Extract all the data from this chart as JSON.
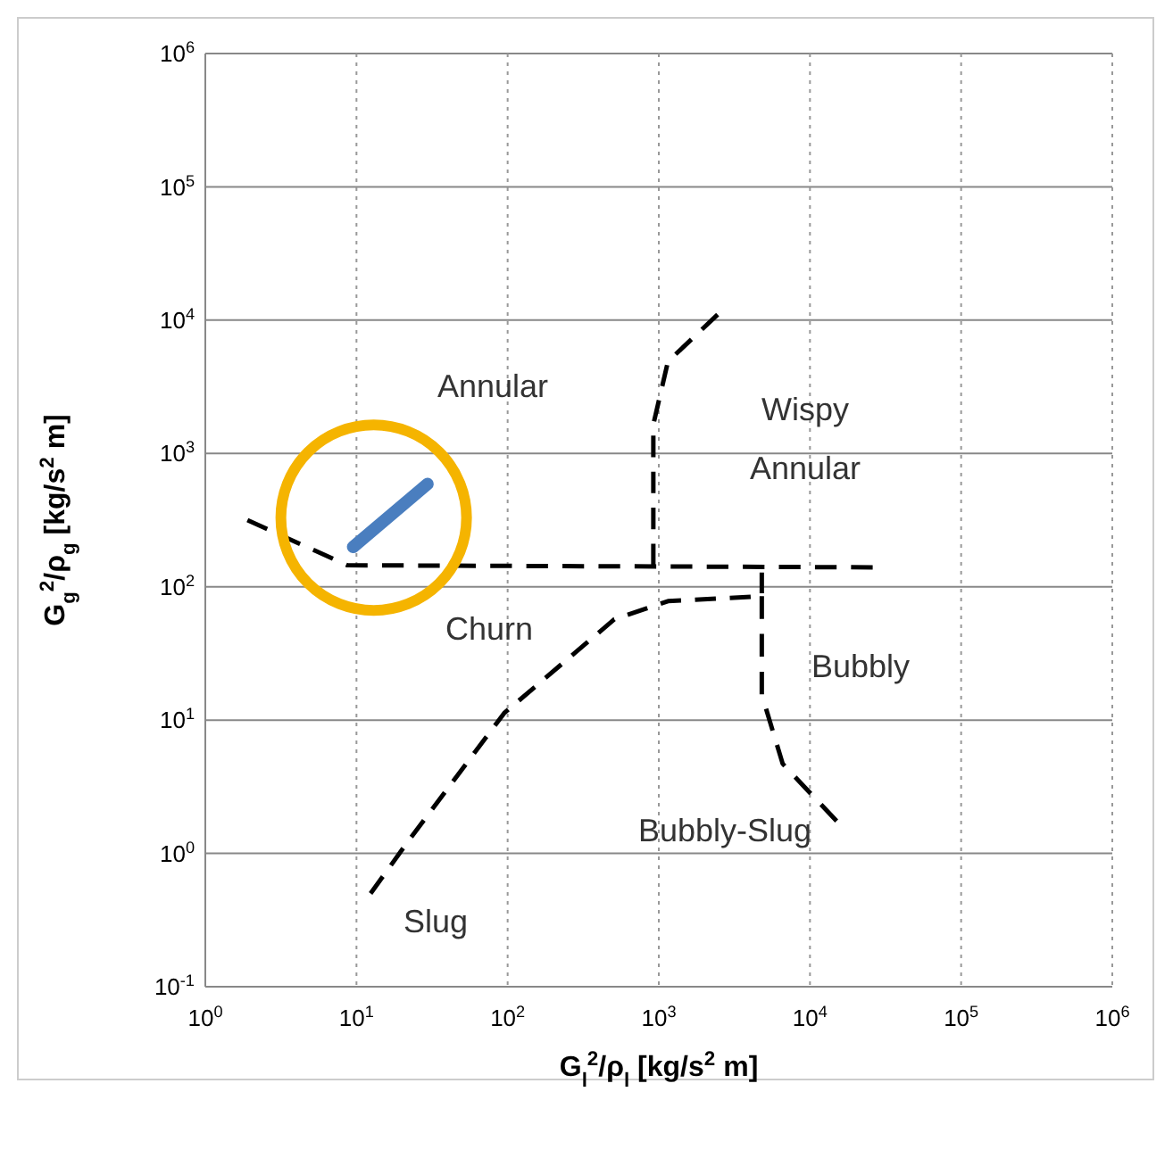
{
  "chart_data": {
    "type": "line",
    "xlabel": "G$_{l}$$^{2}$/ρ$_{l}$ [kg/s$^{2}$ m]",
    "ylabel": "G$_{g}$$^{2}$/ρ$_{g}$ [kg/s$^{2}$ m]",
    "log": "xy",
    "grid": true,
    "xlim": [
      1,
      1000000
    ],
    "ylim": [
      0.1,
      1000000
    ],
    "xticks": [
      {
        "value": 1,
        "label": "10$^{0}$"
      },
      {
        "value": 10,
        "label": "10$^{1}$"
      },
      {
        "value": 100,
        "label": "10$^{2}$"
      },
      {
        "value": 1000,
        "label": "10$^{3}$"
      },
      {
        "value": 10000,
        "label": "10$^{4}$"
      },
      {
        "value": 100000,
        "label": "10$^{5}$"
      },
      {
        "value": 1000000,
        "label": "10$^{6}$"
      }
    ],
    "yticks": [
      {
        "value": 0.1,
        "label": "10$^{-1}$"
      },
      {
        "value": 1,
        "label": "10$^{0}$"
      },
      {
        "value": 10,
        "label": "10$^{1}$"
      },
      {
        "value": 100,
        "label": "10$^{2}$"
      },
      {
        "value": 1000,
        "label": "10$^{3}$"
      },
      {
        "value": 10000,
        "label": "10$^{4}$"
      },
      {
        "value": 100000,
        "label": "10$^{5}$"
      },
      {
        "value": 1000000,
        "label": "10$^{6}$"
      }
    ],
    "series": [
      {
        "color": "#000000",
        "line_style": "dashed",
        "x": [
          1.9,
          8.7,
          26000
        ],
        "values": [
          316,
          145,
          140
        ]
      },
      {
        "color": "#000000",
        "line_style": "dashed",
        "x": [
          2450,
          1150,
          920,
          920
        ],
        "values": [
          11000,
          4900,
          1650,
          145
        ]
      },
      {
        "color": "#000000",
        "line_style": "dashed",
        "x": [
          12.4,
          22.5,
          95,
          508,
          1150,
          4800,
          4800
        ],
        "values": [
          0.5,
          1.28,
          11.3,
          57,
          78,
          85,
          128
        ]
      },
      {
        "color": "#000000",
        "line_style": "dashed",
        "x": [
          4800,
          4800,
          6600,
          15000
        ],
        "values": [
          85,
          15.5,
          4.7,
          1.75
        ]
      },
      {
        "color": "#4a7ebf",
        "line_style": "solid",
        "x": [
          9.5,
          29.5
        ],
        "values": [
          199,
          590
        ]
      }
    ],
    "annotations": [
      "Annular",
      "Wispy",
      "Annular",
      "Churn",
      "Bubbly",
      "Bubbly-Slug",
      "Slug"
    ]
  }
}
